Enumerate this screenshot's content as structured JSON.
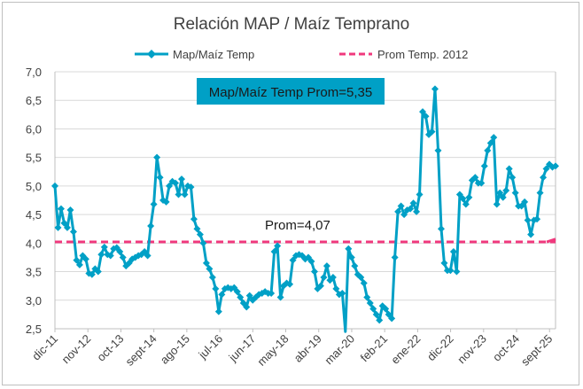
{
  "chart_data": {
    "type": "line",
    "title": "Relación MAP / Maíz Temprano",
    "xlabel": "",
    "ylabel": "",
    "ylim": [
      2.5,
      7.0
    ],
    "yticks": [
      "2,5",
      "3,0",
      "3,5",
      "4,0",
      "4,5",
      "5,0",
      "5,5",
      "6,0",
      "6,5",
      "7,0"
    ],
    "ytick_values": [
      2.5,
      3.0,
      3.5,
      4.0,
      4.5,
      5.0,
      5.5,
      6.0,
      6.5,
      7.0
    ],
    "xtick_labels": [
      "dic-11",
      "nov-12",
      "oct-13",
      "sept-14",
      "ago-15",
      "jul-16",
      "jun-17",
      "may-18",
      "abr-19",
      "mar-20",
      "feb-21",
      "ene-22",
      "dic-22",
      "nov-23",
      "oct-24",
      "sept-25"
    ],
    "grid": true,
    "legend_position": "top",
    "series": [
      {
        "name": "Map/Maíz Temp",
        "color": "#00A0C6",
        "marker": "diamond",
        "values": [
          5.0,
          4.27,
          4.6,
          4.35,
          4.27,
          4.58,
          4.2,
          3.7,
          3.62,
          3.78,
          3.72,
          3.47,
          3.45,
          3.55,
          3.5,
          3.8,
          3.93,
          3.8,
          3.78,
          3.9,
          3.92,
          3.85,
          3.75,
          3.6,
          3.65,
          3.72,
          3.75,
          3.78,
          3.8,
          3.85,
          3.78,
          4.3,
          4.68,
          5.5,
          5.15,
          4.75,
          4.72,
          5.0,
          5.08,
          5.05,
          4.85,
          5.12,
          4.85,
          5.0,
          4.98,
          4.42,
          4.25,
          4.15,
          4.0,
          3.65,
          3.55,
          3.4,
          3.2,
          2.8,
          3.1,
          3.2,
          3.22,
          3.2,
          3.22,
          3.15,
          3.05,
          2.95,
          2.88,
          3.08,
          3.0,
          3.05,
          3.1,
          3.12,
          3.15,
          3.12,
          3.12,
          3.85,
          3.95,
          3.05,
          3.25,
          3.3,
          3.28,
          3.7,
          3.78,
          3.8,
          3.78,
          3.72,
          3.75,
          3.68,
          3.5,
          3.2,
          3.25,
          3.4,
          3.6,
          3.35,
          3.4,
          3.2,
          3.1,
          3.12,
          2.45,
          3.9,
          3.75,
          3.6,
          3.45,
          3.4,
          3.3,
          3.05,
          2.95,
          2.85,
          2.75,
          2.65,
          2.9,
          2.85,
          2.75,
          2.68,
          3.75,
          4.55,
          4.65,
          4.5,
          4.58,
          4.6,
          4.7,
          4.55,
          4.85,
          6.3,
          6.22,
          5.9,
          5.95,
          6.7,
          5.62,
          4.25,
          3.65,
          3.52,
          3.52,
          3.85,
          3.5,
          4.85,
          4.78,
          4.68,
          4.8,
          5.1,
          5.15,
          5.05,
          5.05,
          5.35,
          5.62,
          5.75,
          5.85,
          4.68,
          4.88,
          4.8,
          4.92,
          5.3,
          5.15,
          4.88,
          4.65,
          4.65,
          4.72,
          4.4,
          4.15,
          4.4,
          4.42,
          4.88,
          5.15,
          5.3,
          5.38,
          5.33,
          5.35
        ]
      },
      {
        "name": "Prom Temp. 2012",
        "color": "#F0397D",
        "style": "dashed",
        "value": 4.02,
        "end_value": 4.07
      }
    ],
    "annotations": [
      {
        "text": "Map/Maíz Temp Prom=5,35"
      },
      {
        "text": "Prom=4,07"
      }
    ]
  }
}
